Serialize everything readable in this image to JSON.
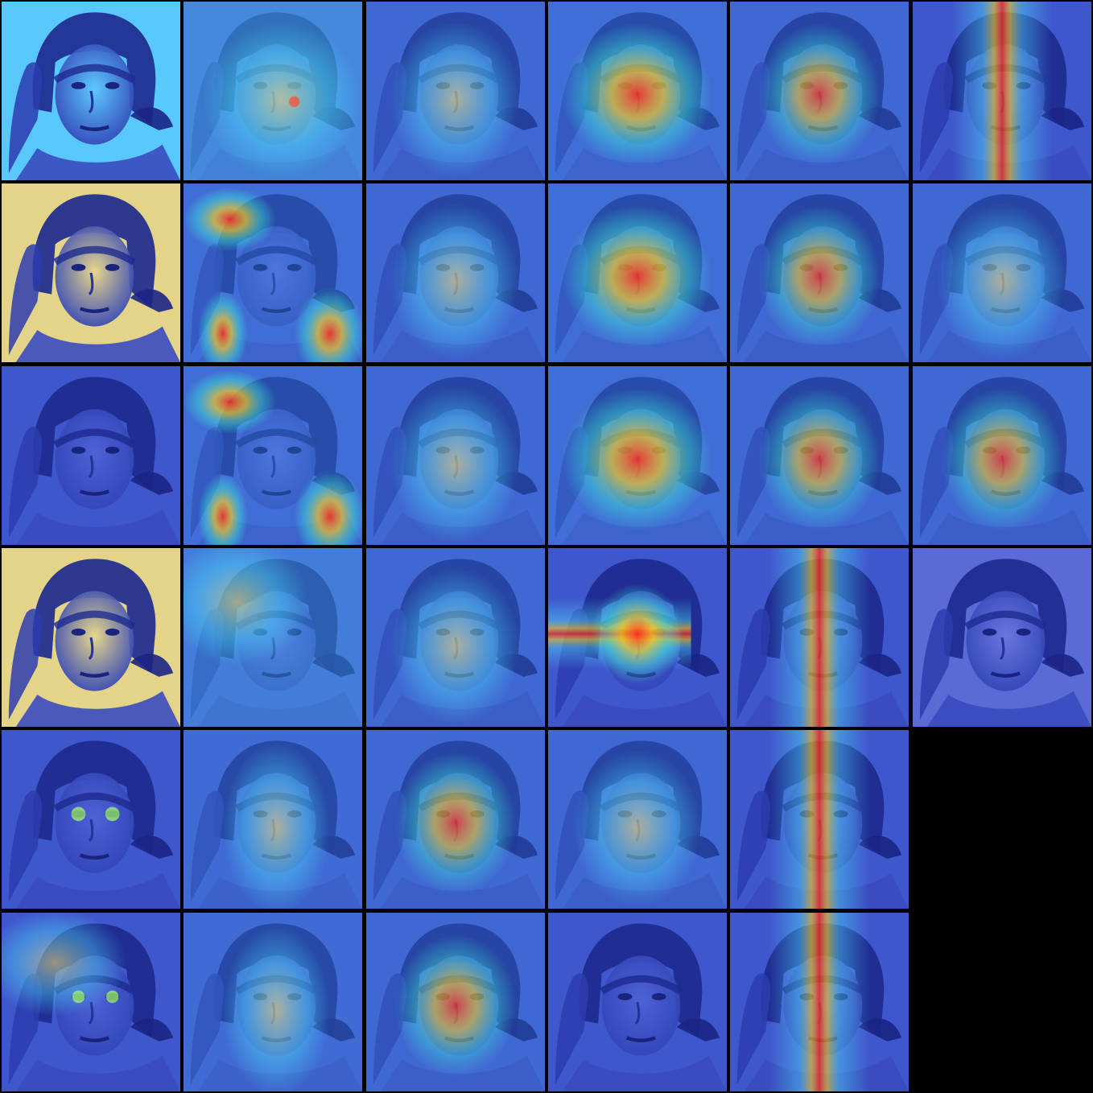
{
  "grid": {
    "rows": 6,
    "cols": 6,
    "cells": [
      {
        "overlay": "edge-cyan",
        "heat": "none"
      },
      {
        "overlay": "blob",
        "heat": "speckle"
      },
      {
        "overlay": "soft",
        "heat": "faint-center"
      },
      {
        "overlay": "soft",
        "heat": "cross-weak"
      },
      {
        "overlay": "soft",
        "heat": "nose-point"
      },
      {
        "overlay": "soft",
        "heat": "vertical-band"
      },
      {
        "overlay": "edge-yellow",
        "heat": "none"
      },
      {
        "overlay": "blob",
        "heat": "top-left-hair"
      },
      {
        "overlay": "soft",
        "heat": "faint-center"
      },
      {
        "overlay": "soft",
        "heat": "cross-weak"
      },
      {
        "overlay": "soft",
        "heat": "nose-point"
      },
      {
        "overlay": "soft",
        "heat": "faint-center"
      },
      {
        "overlay": "edge-blue",
        "heat": "none"
      },
      {
        "overlay": "blob",
        "heat": "top-left-hair"
      },
      {
        "overlay": "soft",
        "heat": "faint-center"
      },
      {
        "overlay": "soft",
        "heat": "cross-weak"
      },
      {
        "overlay": "soft",
        "heat": "nose-point"
      },
      {
        "overlay": "soft",
        "heat": "nose-point"
      },
      {
        "overlay": "edge-yellow",
        "heat": "none"
      },
      {
        "overlay": "soft",
        "heat": "diffuse"
      },
      {
        "overlay": "soft",
        "heat": "faint-center"
      },
      {
        "overlay": "soft",
        "heat": "horizontal-band"
      },
      {
        "overlay": "soft",
        "heat": "vertical-band"
      },
      {
        "overlay": "plain",
        "heat": "none"
      },
      {
        "overlay": "edge-blue",
        "heat": "eyes"
      },
      {
        "overlay": "soft",
        "heat": "faint-vertical"
      },
      {
        "overlay": "soft",
        "heat": "nose-point"
      },
      {
        "overlay": "soft",
        "heat": "faint-center"
      },
      {
        "overlay": "soft",
        "heat": "vertical-band"
      },
      {
        "overlay": "empty",
        "heat": "none"
      },
      {
        "overlay": "edge-blue",
        "heat": "hair-speckle"
      },
      {
        "overlay": "soft",
        "heat": "faint-vertical"
      },
      {
        "overlay": "soft",
        "heat": "nose-point"
      },
      {
        "overlay": "soft",
        "heat": "none"
      },
      {
        "overlay": "soft",
        "heat": "vertical-band"
      },
      {
        "overlay": "empty",
        "heat": "none"
      }
    ]
  }
}
